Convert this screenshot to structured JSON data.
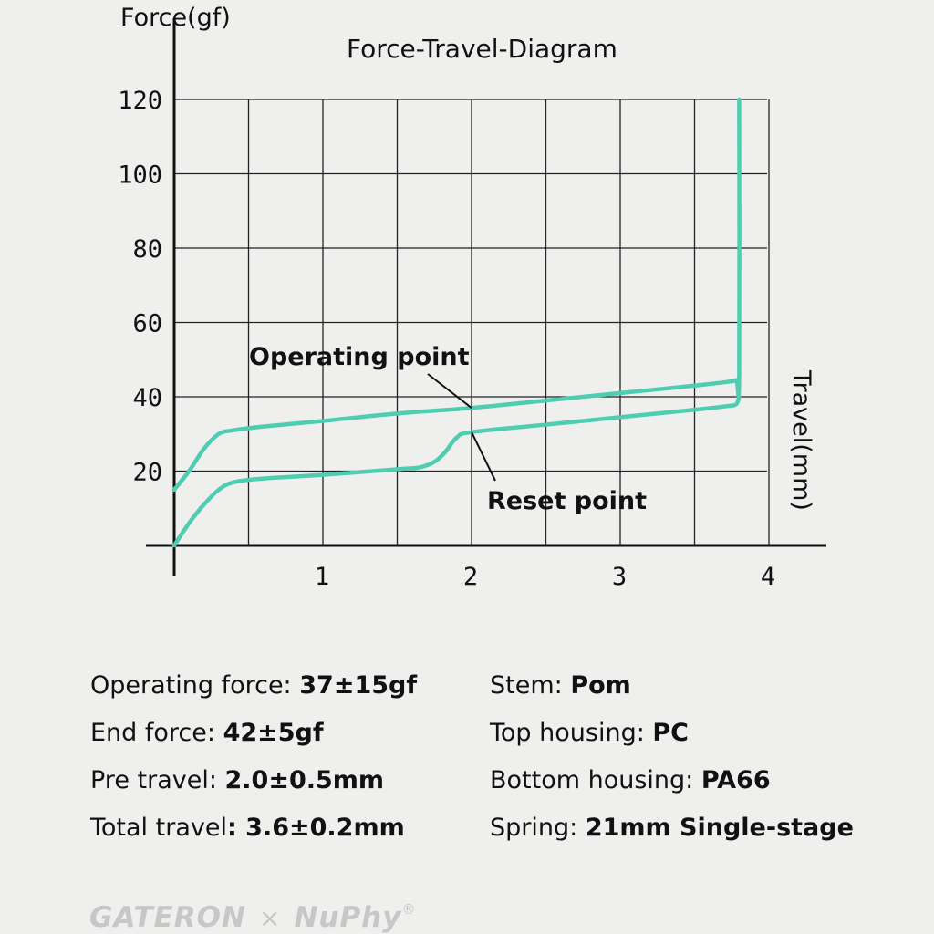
{
  "chart_data": {
    "type": "line",
    "title": "Force-Travel-Diagram",
    "ylabel": "Force(gf)",
    "xlabel": "Travel(mm)",
    "xlim": [
      0,
      4
    ],
    "ylim": [
      0,
      120
    ],
    "xticks": [
      1,
      2,
      3,
      4
    ],
    "yticks": [
      20,
      40,
      60,
      80,
      100,
      120
    ],
    "grid": true,
    "line_color": "#4ecdb0",
    "series": [
      {
        "x": [
          0,
          0.1,
          0.2,
          0.3,
          0.4,
          0.6,
          1.0,
          1.5,
          2.0,
          2.5,
          3.0,
          3.5,
          3.72,
          3.78,
          3.8,
          3.8
        ],
        "y": [
          15,
          20,
          26,
          30,
          31,
          32,
          33.5,
          35.5,
          37,
          39,
          41,
          43,
          44,
          44.5,
          46,
          120
        ]
      },
      {
        "x": [
          0,
          0.1,
          0.2,
          0.3,
          0.4,
          0.6,
          1.0,
          1.5,
          1.65,
          1.75,
          1.82,
          1.9,
          2.0,
          2.5,
          3.0,
          3.5,
          3.72,
          3.78,
          3.8
        ],
        "y": [
          0,
          6,
          11,
          15,
          17,
          18,
          19,
          20.5,
          21,
          22.5,
          25,
          29,
          30.5,
          32.5,
          34.5,
          36.5,
          37.5,
          38,
          40
        ]
      }
    ],
    "annotations": [
      {
        "text": "Operating point",
        "x": 2.0,
        "y": 37
      },
      {
        "text": "Reset point",
        "x": 2.0,
        "y": 30.5
      }
    ]
  },
  "specs": {
    "left": [
      {
        "label": "Operating force: ",
        "value": "37±15gf"
      },
      {
        "label": "End force: ",
        "value": "42±5gf"
      },
      {
        "label": "Pre travel: ",
        "value": "2.0±0.5mm"
      },
      {
        "label": "Total travel",
        "value": ": 3.6±0.2mm"
      }
    ],
    "right": [
      {
        "label": "Stem: ",
        "value": "Pom"
      },
      {
        "label": "Top housing: ",
        "value": "PC"
      },
      {
        "label": "Bottom housing: ",
        "value": "PA66"
      },
      {
        "label": "Spring: ",
        "value": "21mm Single-stage"
      }
    ]
  },
  "brand": {
    "left": "GATERON",
    "sep": "×",
    "right": "NuPhy",
    "mark": "®"
  }
}
